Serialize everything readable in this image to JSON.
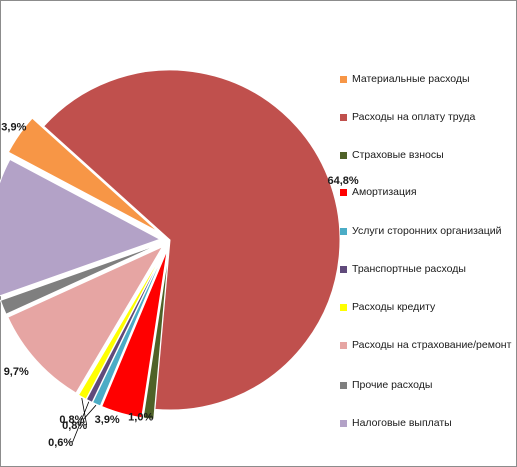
{
  "chart_data": {
    "type": "pie",
    "title": "",
    "legend_position": "right",
    "slices": [
      {
        "name": "Материальные расходы",
        "value": 3.9,
        "label": "3,9%",
        "color": "#F79646"
      },
      {
        "name": "Расходы на оплату труда",
        "value": 64.8,
        "label": "64,8%",
        "color": "#C0504D"
      },
      {
        "name": "Страховые взносы",
        "value": 1.0,
        "label": "1,0%",
        "color": "#4F6228"
      },
      {
        "name": "Амортизация",
        "value": 3.9,
        "label": "3,9%",
        "color": "#FF0000"
      },
      {
        "name": "Услуги сторонних организаций",
        "value": 0.8,
        "label": "0,8%",
        "color": "#4BACC6"
      },
      {
        "name": "Транспортные расходы",
        "value": 0.6,
        "label": "0,6%",
        "color": "#604A7B"
      },
      {
        "name": "Расходы кредиту",
        "value": 0.8,
        "label": "0,8%",
        "color": "#FFFF00"
      },
      {
        "name": "Расходы на страхование/ремонт",
        "value": 9.7,
        "label": "9,7%",
        "color": "#E6A5A3"
      },
      {
        "name": "Прочие расходы",
        "value": 1.4,
        "label": "1,4%",
        "color": "#7F7F7F"
      },
      {
        "name": "Налоговые выплаты",
        "value": 13.2,
        "label": "13,2%",
        "color": "#B3A2C7"
      }
    ]
  }
}
